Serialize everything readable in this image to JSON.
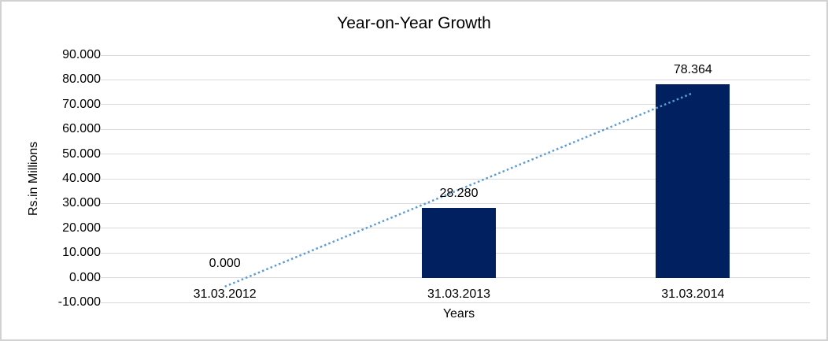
{
  "chart_data": {
    "type": "bar",
    "title": "Year-on-Year Growth",
    "categories": [
      "31.03.2012",
      "31.03.2013",
      "31.03.2014"
    ],
    "values": [
      0.0,
      28.28,
      78.364
    ],
    "data_labels": [
      "0.000",
      "28.280",
      "78.364"
    ],
    "xlabel": "Years",
    "ylabel": "Rs.in Millions",
    "ylim": [
      -10,
      90
    ],
    "ytick_interval": 10,
    "ytick_labels": [
      "90.000",
      "80.000",
      "70.000",
      "60.000",
      "50.000",
      "40.000",
      "30.000",
      "20.000",
      "10.000",
      "0.000",
      "-10.000"
    ],
    "grid": true,
    "legend": "none",
    "colors": {
      "bar": "#002060",
      "gridline": "#d9d9d9",
      "trendline": "#5b9bd5",
      "text": "#000000"
    },
    "trendline": {
      "type": "linear",
      "style": "dotted",
      "endpoint_values": [
        -3.6,
        74.7
      ]
    }
  }
}
